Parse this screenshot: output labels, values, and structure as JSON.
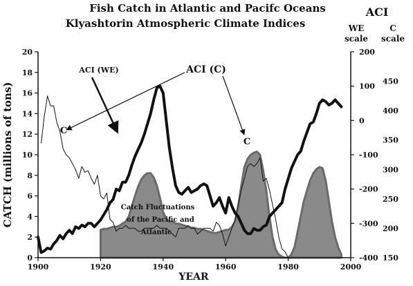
{
  "chart_data": {
    "type": "area",
    "title": "Fish Catch in Atlantic and Pacifc Oceans",
    "subtitle": "Klyashtorin Atmospheric Climate Indices",
    "xlabel": "YEAR",
    "ylabel": "CATCH (millions of tons)",
    "right_axis_title": "ACI",
    "we_scale_label": "WE\nscale",
    "c_scale_label": "C\nscale",
    "xlim": [
      1900,
      2000
    ],
    "ylim": [
      0,
      20
    ],
    "we_lim": [
      -400,
      200
    ],
    "c_lim": [
      150,
      500
    ],
    "x_ticks": [
      1900,
      1920,
      1940,
      1960,
      1980,
      2000
    ],
    "y_ticks": [
      0,
      2,
      4,
      6,
      8,
      10,
      12,
      14,
      16,
      18,
      20
    ],
    "we_ticks": [
      200,
      100,
      0,
      -100,
      -200,
      -300,
      -400
    ],
    "c_ticks": [
      450,
      400,
      350,
      300,
      250,
      200,
      150
    ],
    "grid": false,
    "legend": "none",
    "annotations": {
      "aci_we": "ACI (WE)",
      "aci_c": "ACI (C)",
      "c_left": "C",
      "c_right": "C",
      "catch_line1": "Catch Fluctuations",
      "catch_line2": "of the Pacific and",
      "catch_line3": "Atlantic"
    },
    "series": [
      {
        "name": "ACI (WE)",
        "axis": "we",
        "x": [
          1900,
          1901,
          1902,
          1903,
          1904,
          1905,
          1906,
          1907,
          1908,
          1909,
          1910,
          1911,
          1912,
          1913,
          1914,
          1915,
          1916,
          1917,
          1918,
          1919,
          1920,
          1921,
          1922,
          1923,
          1924,
          1925,
          1926,
          1927,
          1928,
          1929,
          1930,
          1931,
          1932,
          1933,
          1934,
          1935,
          1936,
          1937,
          1938,
          1939,
          1940,
          1941,
          1942,
          1943,
          1944,
          1945,
          1946,
          1947,
          1948,
          1949,
          1950,
          1951,
          1952,
          1953,
          1954,
          1955,
          1956,
          1957,
          1958,
          1959,
          1960,
          1961,
          1962,
          1963,
          1964,
          1965,
          1966,
          1967,
          1968,
          1969,
          1970,
          1971,
          1972,
          1973,
          1974,
          1975,
          1976,
          1977,
          1978,
          1979,
          1980,
          1981,
          1982,
          1983,
          1984,
          1985,
          1986,
          1987,
          1988,
          1989,
          1990,
          1991,
          1992,
          1993,
          1994,
          1995,
          1996,
          1997
        ],
        "y": [
          -340,
          -385,
          -380,
          -372,
          -375,
          -360,
          -350,
          -335,
          -345,
          -330,
          -320,
          -330,
          -310,
          -315,
          -305,
          -310,
          -300,
          -300,
          -310,
          -300,
          -290,
          -275,
          -260,
          -240,
          -230,
          -200,
          -205,
          -180,
          -180,
          -160,
          -130,
          -105,
          -85,
          -65,
          -40,
          -10,
          20,
          60,
          95,
          100,
          80,
          0,
          -80,
          -140,
          -190,
          -210,
          -215,
          -205,
          -195,
          -210,
          -205,
          -200,
          -190,
          -185,
          -190,
          -220,
          -250,
          -240,
          -225,
          -250,
          -270,
          -225,
          -250,
          -270,
          -280,
          -300,
          -320,
          -330,
          -330,
          -315,
          -320,
          -320,
          -310,
          -305,
          -280,
          -270,
          -260,
          -250,
          -240,
          -200,
          -170,
          -140,
          -120,
          -100,
          -90,
          -60,
          -35,
          -10,
          -5,
          20,
          50,
          60,
          55,
          45,
          50,
          60,
          50,
          40
        ]
      },
      {
        "name": "ACI (C)",
        "axis": "c",
        "x": [
          1901,
          1902,
          1903,
          1904,
          1905,
          1906,
          1907,
          1908,
          1909,
          1910,
          1911,
          1912,
          1913,
          1914,
          1915,
          1916,
          1917,
          1918,
          1919,
          1920,
          1921,
          1922,
          1923,
          1924,
          1925,
          1926,
          1927,
          1928,
          1929,
          1930,
          1931,
          1932,
          1933,
          1934,
          1935,
          1936,
          1937,
          1938,
          1939,
          1940,
          1941,
          1942,
          1943,
          1944,
          1945,
          1946,
          1947,
          1948,
          1949,
          1950,
          1951,
          1952,
          1953,
          1954,
          1955,
          1956,
          1957,
          1958,
          1959,
          1960,
          1961,
          1962,
          1963,
          1964,
          1965,
          1966,
          1967,
          1968,
          1969,
          1970,
          1971,
          1972,
          1973,
          1974,
          1975,
          1976,
          1977,
          1978,
          1979,
          1980,
          1981
        ],
        "y": [
          345,
          390,
          425,
          408,
          408,
          380,
          365,
          335,
          325,
          320,
          310,
          300,
          285,
          305,
          295,
          298,
          285,
          275,
          290,
          255,
          250,
          260,
          215,
          210,
          195,
          200,
          200,
          205,
          200,
          200,
          200,
          195,
          195,
          200,
          200,
          200,
          200,
          205,
          200,
          200,
          200,
          195,
          190,
          185,
          200,
          200,
          200,
          205,
          200,
          200,
          190,
          195,
          200,
          200,
          200,
          195,
          210,
          205,
          190,
          170,
          185,
          200,
          215,
          240,
          265,
          285,
          305,
          310,
          305,
          310,
          320,
          280,
          285,
          265,
          240,
          215,
          185,
          165,
          160,
          150,
          150
        ]
      },
      {
        "name": "Catch Fluctuations",
        "axis": "catch",
        "x": [
          1920,
          1921,
          1922,
          1923,
          1924,
          1925,
          1926,
          1927,
          1928,
          1929,
          1930,
          1931,
          1932,
          1933,
          1934,
          1935,
          1936,
          1937,
          1938,
          1939,
          1940,
          1941,
          1942,
          1943,
          1944,
          1945,
          1946,
          1947,
          1948,
          1949,
          1950,
          1951,
          1952,
          1953,
          1954,
          1955,
          1956,
          1957,
          1958,
          1959,
          1960,
          1961,
          1962,
          1963,
          1964,
          1965,
          1966,
          1967,
          1968,
          1969,
          1970,
          1971,
          1972,
          1973,
          1974,
          1975,
          1976,
          1977,
          1978,
          1979,
          1980,
          1981,
          1982,
          1983,
          1984,
          1985,
          1986,
          1987,
          1988,
          1989,
          1990,
          1991,
          1992,
          1993,
          1994,
          1995,
          1996,
          1997
        ],
        "y": [
          2.7,
          2.8,
          2.8,
          2.9,
          3.0,
          3.0,
          3.1,
          3.3,
          3.5,
          4.0,
          5.0,
          6.0,
          6.9,
          7.6,
          8.0,
          8.2,
          8.2,
          7.8,
          7.0,
          5.8,
          4.4,
          3.8,
          3.5,
          3.5,
          3.3,
          3.3,
          3.2,
          3.1,
          3.0,
          2.9,
          2.9,
          2.8,
          2.8,
          2.7,
          2.6,
          2.5,
          2.4,
          2.4,
          2.5,
          2.6,
          2.7,
          2.7,
          3.0,
          3.5,
          5.0,
          7.0,
          8.8,
          9.6,
          10.0,
          10.2,
          10.3,
          10.0,
          8.5,
          6.5,
          4.0,
          2.0,
          0.8,
          0.3,
          0.1,
          0.0,
          0.0,
          0.3,
          1.0,
          2.5,
          4.0,
          5.5,
          6.5,
          7.5,
          8.2,
          8.6,
          8.8,
          8.7,
          7.5,
          5.5,
          3.5,
          2.0,
          1.0,
          0.3
        ]
      }
    ]
  }
}
